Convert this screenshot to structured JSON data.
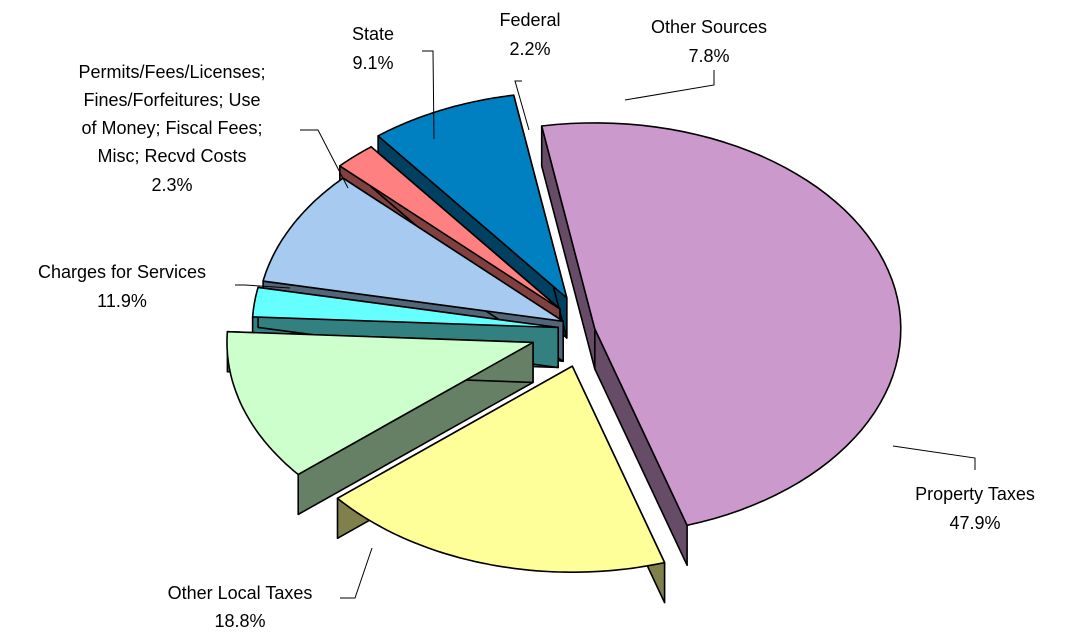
{
  "chart_data": {
    "type": "pie",
    "style": "3d-exploded",
    "slices": [
      {
        "label": "Property Taxes",
        "value": 47.9,
        "value_label": "47.9%",
        "color": "#CC99CC",
        "side_color": "#664C66"
      },
      {
        "label": "Other Local Taxes",
        "value": 18.8,
        "value_label": "18.8%",
        "color": "#FFFF99",
        "side_color": "#80804C"
      },
      {
        "label": "Charges for Services",
        "value": 11.9,
        "value_label": "11.9%",
        "color": "#CCFFCC",
        "side_color": "#668066"
      },
      {
        "label": "Permits/Fees/Licenses; Fines/Forfeitures; Use of Money; Fiscal Fees; Misc; Recvd Costs",
        "label_lines": [
          "Permits/Fees/Licenses;",
          "Fines/Forfeitures; Use",
          "of Money; Fiscal Fees;",
          "Misc; Recvd Costs"
        ],
        "value": 2.3,
        "value_label": "2.3%",
        "color": "#66FFFF",
        "side_color": "#338080"
      },
      {
        "label": "State",
        "value": 9.1,
        "value_label": "9.1%",
        "color": "#A6CAF0",
        "side_color": "#536578"
      },
      {
        "label": "Federal",
        "value": 2.2,
        "value_label": "2.2%",
        "color": "#FF8080",
        "side_color": "#804040"
      },
      {
        "label": "Other Sources",
        "value": 7.8,
        "value_label": "7.8%",
        "color": "#0080C0",
        "side_color": "#004060"
      }
    ]
  }
}
